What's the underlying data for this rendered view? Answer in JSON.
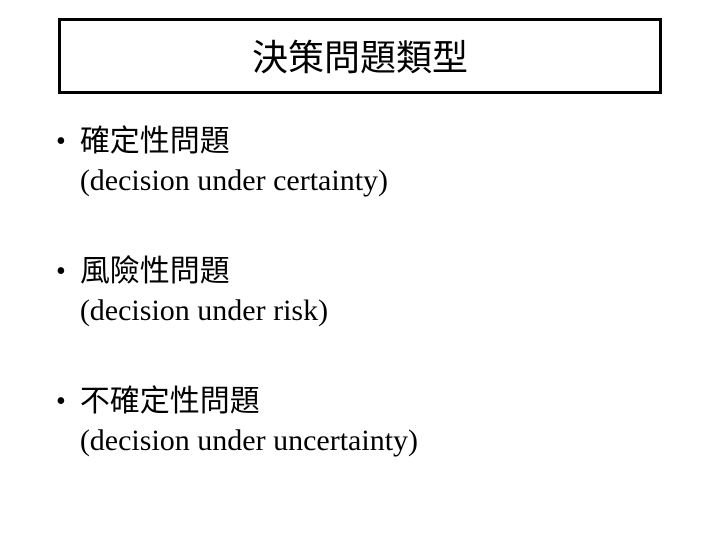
{
  "title": "決策問題類型",
  "items": [
    {
      "heading": "確定性問題",
      "subheading": "(decision under certainty)"
    },
    {
      "heading": "風險性問題",
      "subheading": "(decision under risk)"
    },
    {
      "heading": "不確定性問題",
      "subheading": "(decision under uncertainty)"
    }
  ],
  "colors": {
    "background": "#ffffff",
    "text": "#000000",
    "border": "#000000"
  },
  "typography": {
    "title_fontsize": 36,
    "item_fontsize": 30,
    "font_family_cjk": "PMingLiU",
    "font_family_latin": "Times New Roman"
  },
  "layout": {
    "border_width": 3,
    "item_spacing": 52
  }
}
